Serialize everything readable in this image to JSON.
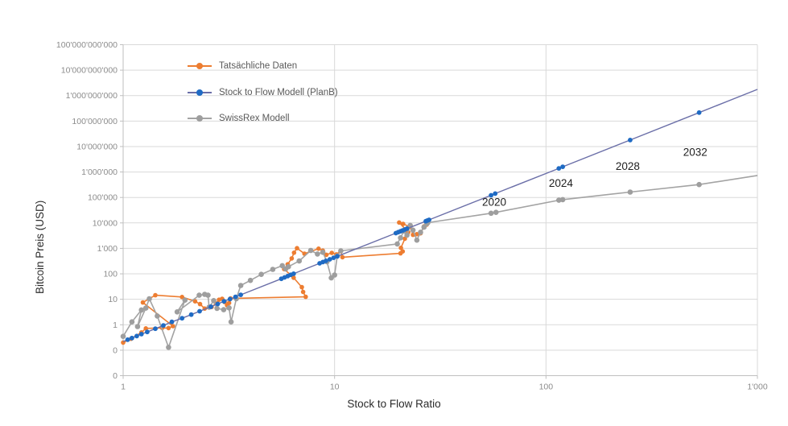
{
  "chart_data": {
    "type": "scatter",
    "scale": "log-log",
    "title": "",
    "xlabel": "Stock to Flow Ratio",
    "ylabel": "Bitcoin Preis  (USD)",
    "xlim": [
      1,
      1000
    ],
    "ylim": [
      0.01,
      100000000000
    ],
    "grid": "both",
    "legend_position": "top-left-inside",
    "x_axis": {
      "ticks": [
        {
          "label": "1",
          "value": 1
        },
        {
          "label": "10",
          "value": 10
        },
        {
          "label": "100",
          "value": 100
        },
        {
          "label": "1'000",
          "value": 1000
        }
      ]
    },
    "y_axis": {
      "ticks": [
        {
          "label": "100'000'000'000",
          "log": 11
        },
        {
          "label": "10'000'000'000",
          "log": 10
        },
        {
          "label": "1'000'000'000",
          "log": 9
        },
        {
          "label": "100'000'000",
          "log": 8
        },
        {
          "label": "10'000'000",
          "log": 7
        },
        {
          "label": "1'000'000",
          "log": 6
        },
        {
          "label": "100'000",
          "log": 5
        },
        {
          "label": "10'000",
          "log": 4
        },
        {
          "label": "1'000",
          "log": 3
        },
        {
          "label": "100",
          "log": 2
        },
        {
          "label": "10",
          "log": 1
        },
        {
          "label": "1",
          "log": 0
        },
        {
          "label": "0",
          "log": -1
        },
        {
          "label": "0",
          "log": -2
        }
      ]
    },
    "colors": {
      "actual": "#ED7D31",
      "planb_line": "#6B6FA8",
      "planb_marker": "#1F6BC4",
      "swissrex": "#A3A3A3",
      "gridline": "#D9D9D9",
      "axis": "#BFBFBF",
      "tick_text": "#8C8C8C",
      "annotation_text": "#1F1F1F"
    },
    "series": [
      {
        "name": "Tatsächliche Daten",
        "line_color": "#ED7D31",
        "marker_color": "#ED7D31",
        "marker_r": 2.8,
        "line_width": 1.6,
        "points": [
          [
            1.0,
            0.2
          ],
          [
            1.09,
            0.28
          ],
          [
            1.22,
            0.5
          ],
          [
            1.28,
            0.72
          ],
          [
            1.53,
            0.75
          ],
          [
            1.64,
            0.74
          ],
          [
            1.72,
            0.88
          ],
          [
            1.24,
            7.5
          ],
          [
            1.42,
            14.5
          ],
          [
            1.9,
            12.3
          ],
          [
            2.19,
            8.3
          ],
          [
            2.31,
            6.5
          ],
          [
            2.43,
            4.3
          ],
          [
            2.62,
            5.0
          ],
          [
            2.75,
            6.8
          ],
          [
            2.84,
            9.6
          ],
          [
            2.94,
            10.5
          ],
          [
            3.02,
            7.8
          ],
          [
            3.1,
            5.8
          ],
          [
            3.17,
            7.2
          ],
          [
            3.22,
            10.8
          ],
          [
            7.3,
            12.5
          ],
          [
            7.1,
            19.5
          ],
          [
            7.0,
            30
          ],
          [
            6.4,
            70
          ],
          [
            5.78,
            153
          ],
          [
            6.0,
            236
          ],
          [
            6.27,
            404
          ],
          [
            6.43,
            677
          ],
          [
            6.64,
            1020
          ],
          [
            7.2,
            620
          ],
          [
            8.4,
            970
          ],
          [
            8.8,
            815
          ],
          [
            9.15,
            560
          ],
          [
            9.7,
            666
          ],
          [
            10.2,
            580
          ],
          [
            10.7,
            810
          ],
          [
            10.9,
            450
          ],
          [
            20.5,
            640
          ],
          [
            21.0,
            760
          ],
          [
            20.6,
            1050
          ],
          [
            21.5,
            2400
          ],
          [
            22.3,
            4300
          ],
          [
            20.2,
            10400
          ],
          [
            21.1,
            9200
          ],
          [
            22.8,
            6900
          ],
          [
            23.5,
            3400
          ],
          [
            24.5,
            3600
          ],
          [
            25.5,
            3900
          ],
          [
            26.5,
            7300
          ],
          [
            27.3,
            8600
          ]
        ]
      },
      {
        "name": "Stock to Flow Modell (PlanB)",
        "line_color": "#6B6FA8",
        "marker_color": "#1F6BC4",
        "marker_r": 2.9,
        "line_width": 1.4,
        "model": "price = 0.22 * SF^3.3",
        "line_prefix": [
          [
            1.0,
            0.22
          ]
        ],
        "line_suffix": [
          [
            1000,
            1750000000
          ]
        ],
        "points": [
          [
            1.05,
            0.26
          ],
          [
            1.1,
            0.3
          ],
          [
            1.16,
            0.36
          ],
          [
            1.22,
            0.43
          ],
          [
            1.3,
            0.52
          ],
          [
            1.42,
            0.7
          ],
          [
            1.55,
            0.94
          ],
          [
            1.7,
            1.3
          ],
          [
            1.9,
            1.8
          ],
          [
            2.1,
            2.5
          ],
          [
            2.3,
            3.4
          ],
          [
            2.6,
            5.1
          ],
          [
            2.8,
            6.6
          ],
          [
            3.0,
            8.3
          ],
          [
            3.2,
            10.2
          ],
          [
            3.4,
            12.5
          ],
          [
            3.6,
            15.0
          ],
          [
            5.6,
            64
          ],
          [
            5.8,
            72
          ],
          [
            6.0,
            81
          ],
          [
            6.2,
            91
          ],
          [
            6.4,
            101
          ],
          [
            8.5,
            258
          ],
          [
            8.8,
            290
          ],
          [
            9.1,
            323
          ],
          [
            9.5,
            372
          ],
          [
            9.9,
            427
          ],
          [
            10.3,
            486
          ],
          [
            19.5,
            3970
          ],
          [
            20.0,
            4330
          ],
          [
            20.5,
            4700
          ],
          [
            21.0,
            5100
          ],
          [
            21.5,
            5510
          ],
          [
            22.0,
            5950
          ],
          [
            27.0,
            11700
          ],
          [
            27.5,
            12430
          ],
          [
            28.0,
            13200
          ],
          [
            55.0,
            122000
          ],
          [
            57.5,
            142000
          ],
          [
            115,
            1390000
          ],
          [
            120,
            1600000
          ],
          [
            250,
            18000000
          ],
          [
            530,
            215000000
          ]
        ]
      },
      {
        "name": "SwissRex Modell",
        "line_color": "#A3A3A3",
        "marker_color": "#9E9E9E",
        "marker_r": 3.3,
        "line_width": 1.6,
        "line_suffix": [
          [
            1000,
            730000
          ]
        ],
        "points": [
          [
            1.0,
            0.35
          ],
          [
            1.1,
            1.3
          ],
          [
            1.22,
            3.8
          ],
          [
            1.17,
            0.85
          ],
          [
            1.28,
            4.5
          ],
          [
            1.33,
            10.5
          ],
          [
            1.45,
            2.2
          ],
          [
            1.64,
            0.13
          ],
          [
            1.96,
            9.3
          ],
          [
            1.8,
            3.2
          ],
          [
            2.29,
            14.5
          ],
          [
            2.43,
            15.6
          ],
          [
            2.52,
            14.5
          ],
          [
            2.55,
            4.9
          ],
          [
            2.68,
            8.9
          ],
          [
            2.78,
            4.4
          ],
          [
            2.99,
            3.9
          ],
          [
            3.17,
            4.6
          ],
          [
            3.24,
            1.3
          ],
          [
            3.43,
            10.6
          ],
          [
            3.6,
            35
          ],
          [
            4.0,
            55
          ],
          [
            4.5,
            95
          ],
          [
            5.1,
            150
          ],
          [
            5.66,
            209
          ],
          [
            5.87,
            156
          ],
          [
            6.05,
            190
          ],
          [
            6.8,
            320
          ],
          [
            7.72,
            830
          ],
          [
            8.3,
            600
          ],
          [
            8.8,
            700
          ],
          [
            9.2,
            300
          ],
          [
            9.65,
            69
          ],
          [
            10.0,
            90
          ],
          [
            10.3,
            500
          ],
          [
            10.7,
            800
          ],
          [
            19.8,
            1500
          ],
          [
            20.5,
            2600
          ],
          [
            21.3,
            4800
          ],
          [
            22.0,
            3300
          ],
          [
            22.8,
            8000
          ],
          [
            23.5,
            5200
          ],
          [
            24.5,
            2100
          ],
          [
            25.5,
            4300
          ],
          [
            26.5,
            6800
          ],
          [
            27.3,
            9300
          ],
          [
            27.6,
            10200
          ],
          [
            55.0,
            24000
          ],
          [
            58.0,
            26000
          ],
          [
            115,
            78000
          ],
          [
            120,
            82000
          ],
          [
            250,
            163000
          ],
          [
            530,
            320000
          ]
        ]
      }
    ],
    "annotations": [
      {
        "label": "2020",
        "sf": 56.9,
        "price": 66000
      },
      {
        "label": "2024",
        "sf": 117.7,
        "price": 366000
      },
      {
        "label": "2028",
        "sf": 243.6,
        "price": 1690000
      },
      {
        "label": "2032",
        "sf": 508,
        "price": 6050000
      }
    ]
  }
}
